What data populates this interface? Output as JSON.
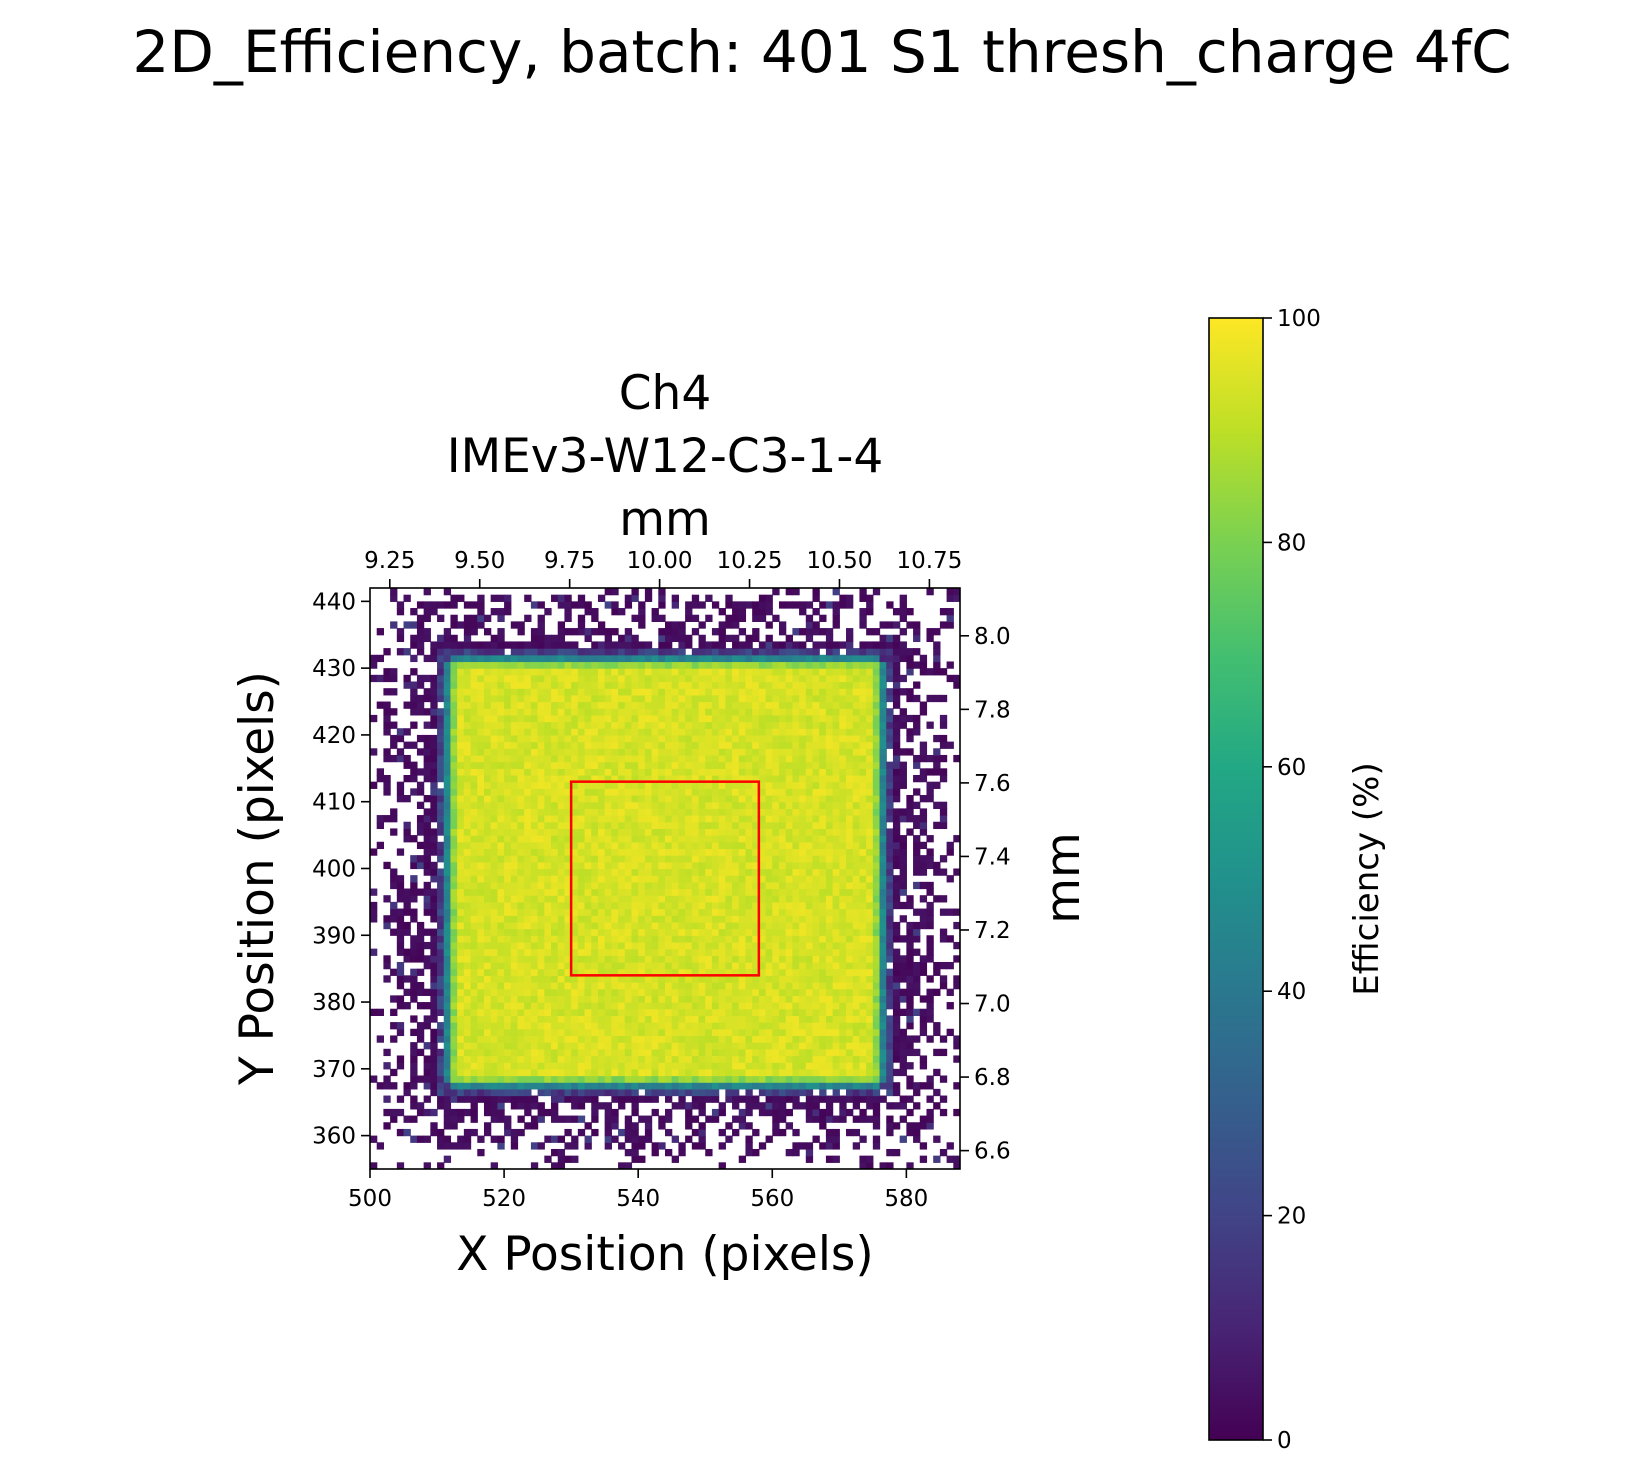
{
  "figure_title": "2D_Efficiency, batch: 401  S1 thresh_charge 4fC",
  "chart_data": {
    "type": "heatmap",
    "title_lines": [
      "Ch4",
      "IMEv3-W12-C3-1-4",
      "mm"
    ],
    "xlabel": "X Position (pixels)",
    "ylabel": "Y Position (pixels)",
    "secondary_ylabel": "mm",
    "colorbar_label": "Efficiency (%)",
    "colormap": "viridis",
    "clim": [
      0,
      100
    ],
    "xlim": [
      500,
      588
    ],
    "ylim": [
      355,
      442
    ],
    "x_ticks": [
      "500",
      "520",
      "540",
      "560",
      "580"
    ],
    "y_ticks": [
      "360",
      "370",
      "380",
      "390",
      "400",
      "410",
      "420",
      "430",
      "440"
    ],
    "x_mm_ticks": [
      "9.25",
      "9.50",
      "9.75",
      "10.00",
      "10.25",
      "10.50",
      "10.75"
    ],
    "y_mm_ticks": [
      "6.6",
      "6.8",
      "7.0",
      "7.2",
      "7.4",
      "7.6",
      "7.8",
      "8.0"
    ],
    "colorbar_ticks": [
      "0",
      "20",
      "40",
      "60",
      "80",
      "100"
    ],
    "x_mm_tick_values": [
      9.25,
      9.5,
      9.75,
      10.0,
      10.25,
      10.5,
      10.75
    ],
    "y_mm_tick_values": [
      6.6,
      6.8,
      7.0,
      7.2,
      7.4,
      7.6,
      7.8,
      8.0
    ],
    "x_mm_range": [
      9.195,
      10.835
    ],
    "y_mm_range": [
      6.55,
      8.13
    ],
    "bin_size_pixels": 1,
    "sensor_region": {
      "x": [
        511,
        577
      ],
      "y": [
        367,
        432
      ],
      "edge_efficiency": 40,
      "core_efficiency": 96
    },
    "roi_box": {
      "x": [
        530,
        558
      ],
      "y": [
        384,
        413
      ],
      "color": "#ff0000"
    }
  }
}
